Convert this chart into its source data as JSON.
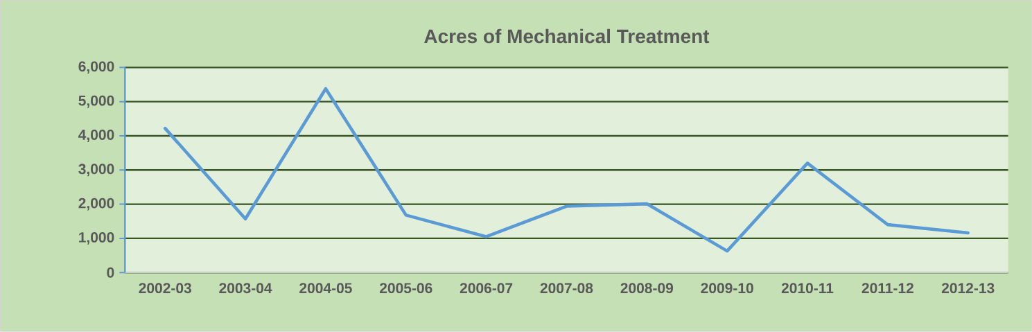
{
  "chart_data": {
    "type": "line",
    "title": "Acres of Mechanical Treatment",
    "categories": [
      "2002-03",
      "2003-04",
      "2004-05",
      "2005-06",
      "2006-07",
      "2007-08",
      "2008-09",
      "2009-10",
      "2010-11",
      "2011-12",
      "2012-13"
    ],
    "series": [
      {
        "color": "#5b9bd5",
        "values": [
          4220,
          1570,
          5380,
          1680,
          1050,
          1940,
          2010,
          630,
          3200,
          1400,
          1160
        ]
      }
    ],
    "ylim": [
      0,
      6000
    ],
    "yticks": [
      {
        "value": 0,
        "label": "0"
      },
      {
        "value": 1000,
        "label": "1,000"
      },
      {
        "value": 2000,
        "label": "2,000"
      },
      {
        "value": 3000,
        "label": "3,000"
      },
      {
        "value": 4000,
        "label": "4,000"
      },
      {
        "value": 5000,
        "label": "5,000"
      },
      {
        "value": 6000,
        "label": "6,000"
      }
    ],
    "grid": "y",
    "marker": "none",
    "line_style": "solid"
  }
}
